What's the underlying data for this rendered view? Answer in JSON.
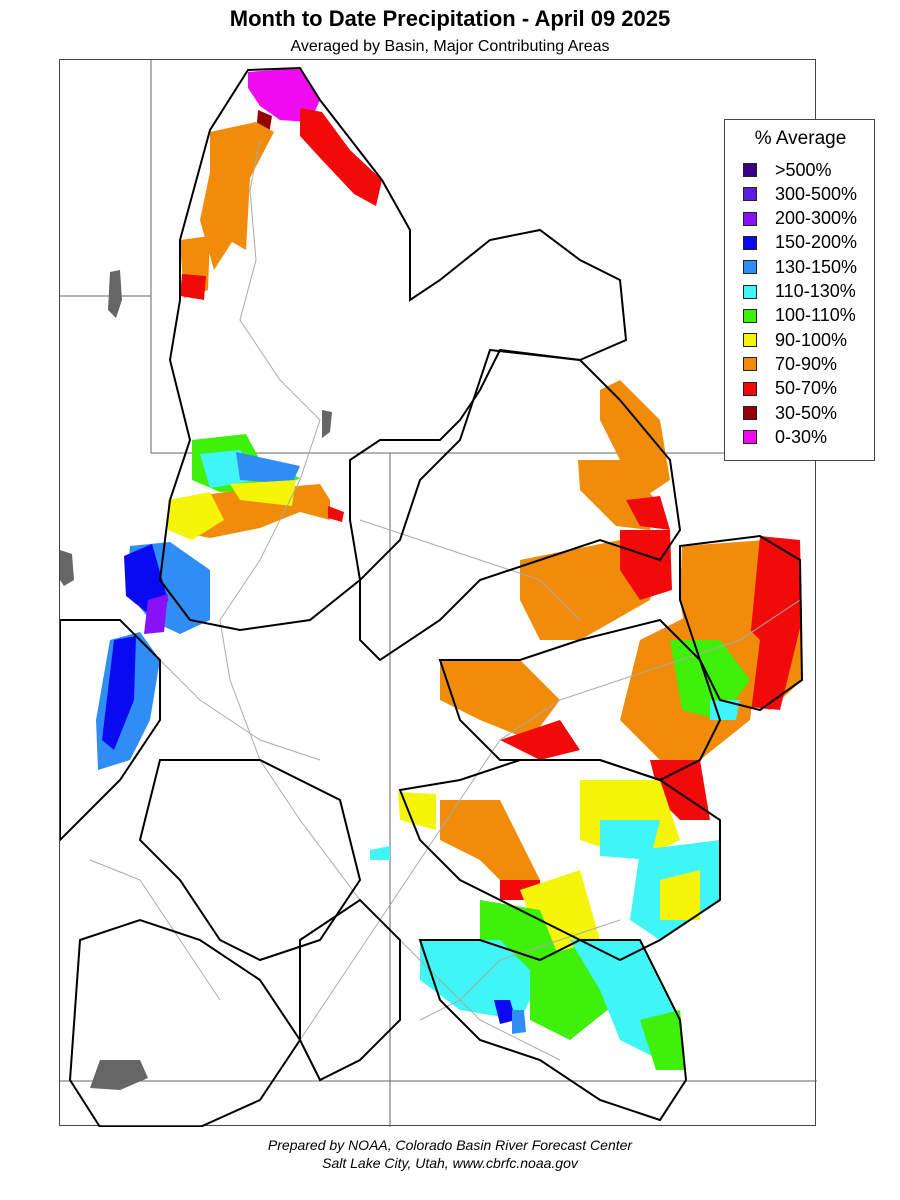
{
  "title": "Month to Date Precipitation - April 09 2025",
  "subtitle": "Averaged by Basin, Major Contributing Areas",
  "legend": {
    "title": "% Average",
    "items": [
      {
        "label": ">500%",
        "color": "#3b0086"
      },
      {
        "label": "300-500%",
        "color": "#5a1ee0"
      },
      {
        "label": "200-300%",
        "color": "#8a10f5"
      },
      {
        "label": "150-200%",
        "color": "#0a0af0"
      },
      {
        "label": "130-150%",
        "color": "#2f8df5"
      },
      {
        "label": "110-130%",
        "color": "#40f5f5"
      },
      {
        "label": "100-110%",
        "color": "#3ef00a"
      },
      {
        "label": "90-100%",
        "color": "#f5f50a"
      },
      {
        "label": "70-90%",
        "color": "#f08c0a"
      },
      {
        "label": "50-70%",
        "color": "#f00a0a"
      },
      {
        "label": "30-50%",
        "color": "#960000"
      },
      {
        "label": "0-30%",
        "color": "#f00af0"
      }
    ]
  },
  "credits": {
    "line1": "Prepared by NOAA, Colorado Basin River Forecast Center",
    "line2": "Salt Lake City, Utah, www.cbrfc.noaa.gov"
  },
  "colors": {
    "basin_outline": "#000000",
    "state_line": "#666666",
    "river": "#aaaaaa",
    "lake": "#666666",
    "no_data": "#ffffff"
  }
}
